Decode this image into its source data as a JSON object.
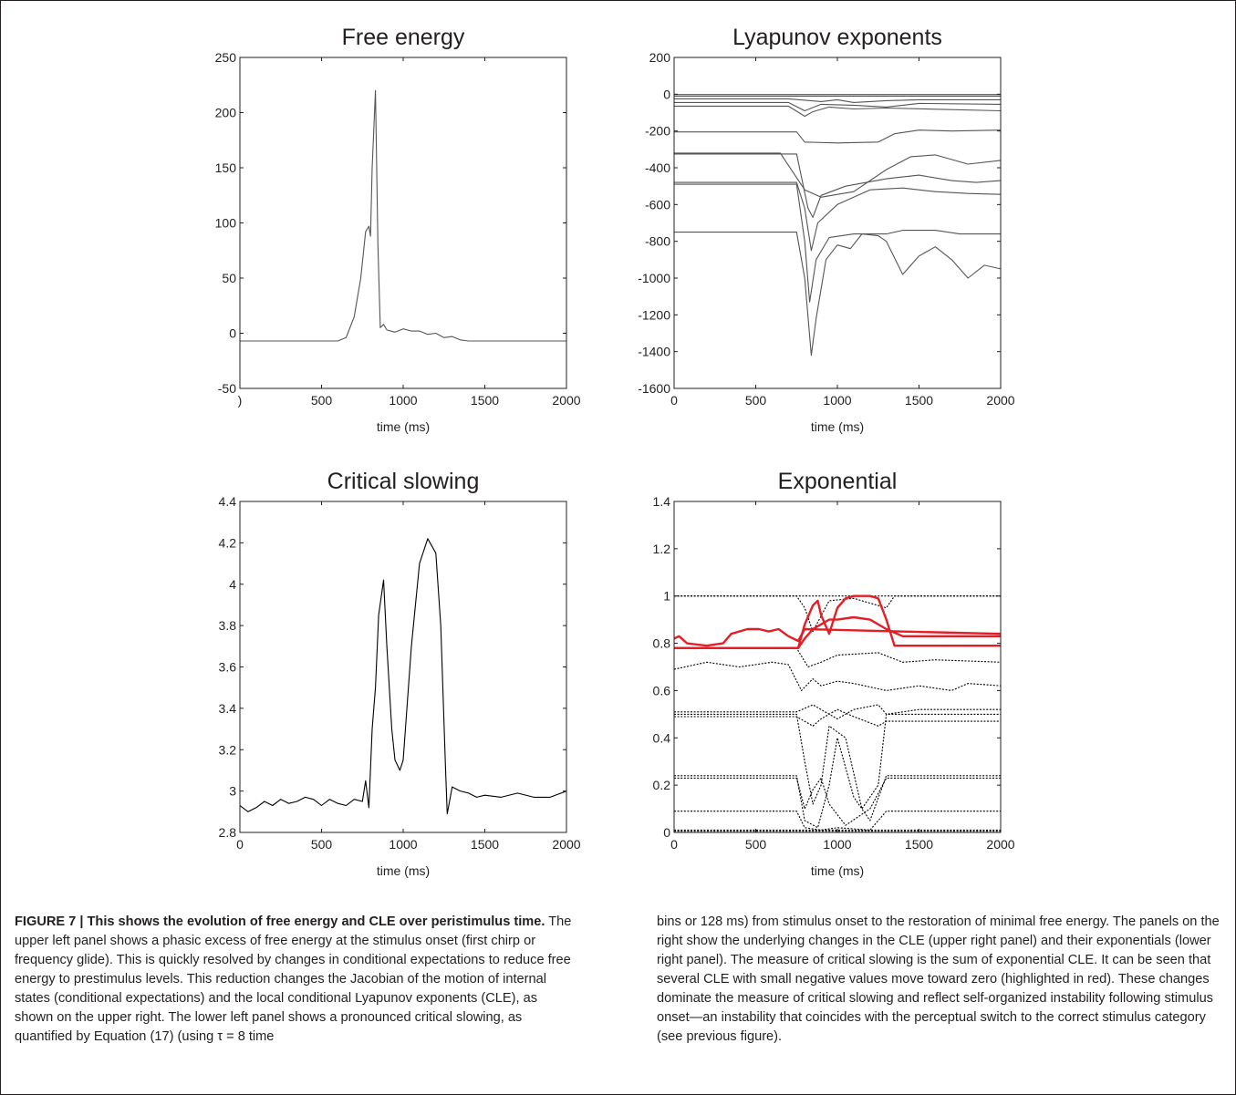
{
  "figure": {
    "panels": [
      {
        "id": "free-energy",
        "title": "Free energy",
        "xlabel": "time (ms)",
        "ylabel": "",
        "x_ticks": [
          ")",
          "500",
          "1000",
          "1500",
          "2000"
        ],
        "y_ticks": [
          "-50",
          "0",
          "50",
          "100",
          "150",
          "200",
          "250"
        ]
      },
      {
        "id": "lyapunov",
        "title": "Lyapunov exponents",
        "xlabel": "time (ms)",
        "ylabel": "",
        "x_ticks": [
          "0",
          "500",
          "1000",
          "1500",
          "2000"
        ],
        "y_ticks": [
          "-1600",
          "-1400",
          "-1200",
          "-1000",
          "-800",
          "-600",
          "-400",
          "-200",
          "0",
          "200"
        ]
      },
      {
        "id": "critical-slowing",
        "title": "Critical slowing",
        "xlabel": "time (ms)",
        "ylabel": "",
        "x_ticks": [
          "0",
          "500",
          "1000",
          "1500",
          "2000"
        ],
        "y_ticks": [
          "2.8",
          "3",
          "3.2",
          "3.4",
          "3.6",
          "3.8",
          "4",
          "4.2",
          "4.4"
        ]
      },
      {
        "id": "exponential",
        "title": "Exponential",
        "xlabel": "time (ms)",
        "ylabel": "",
        "x_ticks": [
          "0",
          "500",
          "1000",
          "1500",
          "2000"
        ],
        "y_ticks": [
          "0",
          "0.2",
          "0.4",
          "0.6",
          "0.8",
          "1",
          "1.2",
          "1.4"
        ]
      }
    ]
  },
  "chart_data": [
    {
      "type": "line",
      "title": "Free energy",
      "xlabel": "time (ms)",
      "ylabel": "",
      "xlim": [
        0,
        2000
      ],
      "ylim": [
        -50,
        250
      ],
      "grid": false,
      "series": [
        {
          "color": "#555555",
          "x": [
            0,
            600,
            650,
            700,
            740,
            770,
            790,
            800,
            810,
            830,
            845,
            860,
            880,
            900,
            950,
            1000,
            1050,
            1100,
            1150,
            1200,
            1250,
            1300,
            1350,
            1400,
            1500,
            2000
          ],
          "y": [
            -7,
            -7,
            -4,
            15,
            50,
            92,
            97,
            88,
            150,
            220,
            80,
            5,
            8,
            3,
            1,
            4,
            2,
            2,
            -1,
            0,
            -4,
            -3,
            -6,
            -7,
            -7,
            -7
          ]
        }
      ]
    },
    {
      "type": "line",
      "title": "Lyapunov exponents",
      "xlabel": "time (ms)",
      "ylabel": "",
      "xlim": [
        0,
        2000
      ],
      "ylim": [
        -1600,
        200
      ],
      "grid": false,
      "series": [
        {
          "color": "#555555",
          "x": [
            0,
            2000
          ],
          "y": [
            -2,
            -2
          ]
        },
        {
          "color": "#555555",
          "x": [
            0,
            2000
          ],
          "y": [
            -10,
            -10
          ]
        },
        {
          "color": "#555555",
          "x": [
            0,
            700,
            900,
            1000,
            1100,
            1300,
            1500,
            2000
          ],
          "y": [
            -25,
            -25,
            -40,
            -30,
            -45,
            -35,
            -30,
            -30
          ]
        },
        {
          "color": "#555555",
          "x": [
            0,
            700,
            800,
            900,
            1100,
            1300,
            1500,
            2000
          ],
          "y": [
            -45,
            -45,
            -90,
            -55,
            -60,
            -70,
            -50,
            -55
          ]
        },
        {
          "color": "#555555",
          "x": [
            0,
            700,
            800,
            850,
            950,
            1100,
            1300,
            2000
          ],
          "y": [
            -65,
            -65,
            -120,
            -95,
            -70,
            -80,
            -75,
            -90
          ]
        },
        {
          "color": "#555555",
          "x": [
            0,
            750,
            800,
            1000,
            1250,
            1350,
            1500,
            1700,
            2000
          ],
          "y": [
            -205,
            -205,
            -260,
            -265,
            -260,
            -215,
            -195,
            -200,
            -195
          ]
        },
        {
          "color": "#555555",
          "x": [
            0,
            650,
            800,
            900,
            1100,
            1300,
            1450,
            1600,
            1800,
            2000
          ],
          "y": [
            -320,
            -320,
            -520,
            -560,
            -530,
            -410,
            -340,
            -330,
            -380,
            -360
          ]
        },
        {
          "color": "#555555",
          "x": [
            0,
            750,
            820,
            850,
            900,
            1050,
            1300,
            1500,
            1700,
            1850,
            2000
          ],
          "y": [
            -325,
            -325,
            -620,
            -670,
            -550,
            -500,
            -460,
            -440,
            -470,
            -480,
            -470
          ]
        },
        {
          "color": "#555555",
          "x": [
            0,
            750,
            800,
            840,
            880,
            1000,
            1200,
            1400,
            1600,
            1800,
            2000
          ],
          "y": [
            -480,
            -480,
            -620,
            -850,
            -700,
            -600,
            -520,
            -510,
            -530,
            -540,
            -545
          ]
        },
        {
          "color": "#555555",
          "x": [
            0,
            750,
            800,
            830,
            870,
            950,
            1100,
            1300,
            1400,
            1600,
            1750,
            2000
          ],
          "y": [
            -490,
            -490,
            -800,
            -1130,
            -900,
            -780,
            -760,
            -760,
            -740,
            -740,
            -760,
            -760
          ]
        },
        {
          "color": "#555555",
          "x": [
            0,
            750,
            800,
            840,
            870,
            930,
            1000,
            1080,
            1150,
            1250,
            1300,
            1400,
            1500,
            1600,
            1700,
            1800,
            1900,
            2000
          ],
          "y": [
            -750,
            -750,
            -1000,
            -1420,
            -1220,
            -900,
            -820,
            -840,
            -760,
            -770,
            -800,
            -980,
            -880,
            -830,
            -900,
            -1000,
            -930,
            -950
          ]
        }
      ]
    },
    {
      "type": "line",
      "title": "Critical slowing",
      "xlabel": "time (ms)",
      "ylabel": "",
      "xlim": [
        0,
        2000
      ],
      "ylim": [
        2.8,
        4.4
      ],
      "grid": false,
      "series": [
        {
          "color": "#000000",
          "x": [
            0,
            50,
            100,
            150,
            200,
            250,
            300,
            350,
            400,
            450,
            500,
            550,
            600,
            650,
            700,
            750,
            770,
            790,
            810,
            830,
            850,
            880,
            900,
            930,
            950,
            980,
            1000,
            1050,
            1100,
            1150,
            1200,
            1230,
            1260,
            1270,
            1300,
            1350,
            1400,
            1450,
            1500,
            1600,
            1700,
            1800,
            1900,
            2000
          ],
          "y": [
            2.93,
            2.9,
            2.92,
            2.95,
            2.93,
            2.96,
            2.94,
            2.95,
            2.97,
            2.96,
            2.93,
            2.96,
            2.94,
            2.93,
            2.96,
            2.95,
            3.05,
            2.92,
            3.3,
            3.5,
            3.85,
            4.02,
            3.7,
            3.3,
            3.15,
            3.1,
            3.15,
            3.7,
            4.1,
            4.22,
            4.15,
            3.8,
            3.1,
            2.89,
            3.02,
            3.0,
            2.99,
            2.97,
            2.98,
            2.97,
            2.99,
            2.97,
            2.97,
            3.0
          ]
        }
      ]
    },
    {
      "type": "line",
      "title": "Exponential",
      "xlabel": "time (ms)",
      "ylabel": "",
      "xlim": [
        0,
        2000
      ],
      "ylim": [
        0,
        1.4
      ],
      "grid": false,
      "series": [
        {
          "color": "#000000",
          "dashed": true,
          "x": [
            0,
            2000
          ],
          "y": [
            1.0,
            1.0
          ]
        },
        {
          "color": "#000000",
          "dashed": true,
          "x": [
            0,
            750,
            800,
            850,
            950,
            1100,
            1300,
            1350,
            2000
          ],
          "y": [
            1.0,
            1.0,
            0.95,
            0.85,
            0.98,
            0.99,
            0.95,
            1.0,
            1.0
          ]
        },
        {
          "color": "#000000",
          "dashed": true,
          "x": [
            0,
            750,
            820,
            900,
            1000,
            1250,
            1400,
            1600,
            2000
          ],
          "y": [
            0.78,
            0.78,
            0.7,
            0.72,
            0.75,
            0.76,
            0.72,
            0.73,
            0.72
          ]
        },
        {
          "color": "#000000",
          "dashed": true,
          "x": [
            0,
            200,
            400,
            600,
            700,
            780,
            850,
            900,
            1000,
            1100,
            1300,
            1500,
            1700,
            1800,
            2000
          ],
          "y": [
            0.69,
            0.72,
            0.7,
            0.72,
            0.71,
            0.6,
            0.65,
            0.62,
            0.64,
            0.63,
            0.6,
            0.62,
            0.6,
            0.63,
            0.62
          ]
        },
        {
          "color": "#000000",
          "dashed": true,
          "x": [
            0,
            750,
            850,
            900,
            1000,
            1100,
            1250,
            1300,
            1500,
            2000
          ],
          "y": [
            0.51,
            0.51,
            0.54,
            0.52,
            0.48,
            0.52,
            0.54,
            0.5,
            0.52,
            0.52
          ]
        },
        {
          "color": "#000000",
          "dashed": true,
          "x": [
            0,
            750,
            850,
            900,
            1000,
            1100,
            1250,
            1300,
            2000
          ],
          "y": [
            0.49,
            0.49,
            0.45,
            0.48,
            0.52,
            0.49,
            0.45,
            0.47,
            0.47
          ]
        },
        {
          "color": "#000000",
          "dashed": true,
          "x": [
            0,
            750,
            800,
            850,
            900,
            950,
            1050,
            1150,
            1250,
            1300,
            2000
          ],
          "y": [
            0.5,
            0.5,
            0.3,
            0.12,
            0.2,
            0.45,
            0.4,
            0.1,
            0.2,
            0.5,
            0.5
          ]
        },
        {
          "color": "#000000",
          "dashed": true,
          "x": [
            0,
            750,
            800,
            880,
            950,
            1000,
            1100,
            1200,
            1300,
            2000
          ],
          "y": [
            0.24,
            0.24,
            0.05,
            0.02,
            0.2,
            0.4,
            0.15,
            0.05,
            0.24,
            0.24
          ]
        },
        {
          "color": "#000000",
          "dashed": true,
          "x": [
            0,
            750,
            800,
            850,
            900,
            950,
            1050,
            1200,
            1300,
            2000
          ],
          "y": [
            0.23,
            0.23,
            0.1,
            0.18,
            0.23,
            0.12,
            0.03,
            0.1,
            0.23,
            0.23
          ]
        },
        {
          "color": "#000000",
          "dashed": true,
          "x": [
            0,
            750,
            800,
            900,
            1000,
            1200,
            1300,
            2000
          ],
          "y": [
            0.09,
            0.09,
            0.02,
            0.01,
            0.02,
            0.01,
            0.09,
            0.09
          ]
        },
        {
          "color": "#000000",
          "dashed": true,
          "x": [
            0,
            2000
          ],
          "y": [
            0.01,
            0.01
          ]
        },
        {
          "color": "#000000",
          "dashed": true,
          "x": [
            0,
            2000
          ],
          "y": [
            0.005,
            0.005
          ]
        },
        {
          "color": "#e31e24",
          "x": [
            0,
            30,
            80,
            200,
            300,
            350,
            450,
            520,
            580,
            640,
            700,
            760,
            800,
            2000
          ],
          "y": [
            0.82,
            0.83,
            0.8,
            0.79,
            0.8,
            0.84,
            0.86,
            0.86,
            0.85,
            0.86,
            0.83,
            0.81,
            0.86,
            0.84
          ]
        },
        {
          "color": "#e31e24",
          "x": [
            0,
            760,
            800,
            850,
            880,
            900,
            950,
            1000,
            1050,
            1100,
            1200,
            1250,
            1300,
            1350,
            2000
          ],
          "y": [
            0.78,
            0.78,
            0.88,
            0.96,
            0.98,
            0.92,
            0.84,
            0.95,
            0.99,
            1.0,
            1.0,
            0.99,
            0.9,
            0.79,
            0.79
          ]
        },
        {
          "color": "#e31e24",
          "x": [
            0,
            760,
            800,
            850,
            900,
            950,
            1000,
            1100,
            1200,
            1300,
            1400,
            2000
          ],
          "y": [
            0.78,
            0.78,
            0.82,
            0.86,
            0.88,
            0.9,
            0.9,
            0.91,
            0.9,
            0.86,
            0.83,
            0.83
          ]
        }
      ]
    }
  ],
  "caption": {
    "lead": "FIGURE 7 | This shows the evolution of free energy and CLE over peristimulus time.",
    "left_text": " The upper left panel shows a phasic excess of free energy at the stimulus onset (first chirp or frequency glide). This is quickly resolved by changes in conditional expectations to reduce free energy to prestimulus levels. This reduction changes the Jacobian of the motion of internal states (conditional expectations) and the local conditional Lyapunov exponents (CLE), as shown on the upper right. The lower left panel shows a pronounced critical slowing, as quantified by Equation (17) (using τ = 8 time",
    "right_text": "bins or 128 ms) from stimulus onset to the restoration of minimal free energy. The panels on the right show the underlying changes in the CLE (upper right panel) and their exponentials (lower right panel). The measure of critical slowing is the sum of exponential CLE. It can be seen that several CLE with small negative values move toward zero (highlighted in red). These changes dominate the measure of critical slowing and reflect self-organized instability following stimulus onset—an instability that coincides with the perceptual switch to the correct stimulus category (see previous figure)."
  }
}
